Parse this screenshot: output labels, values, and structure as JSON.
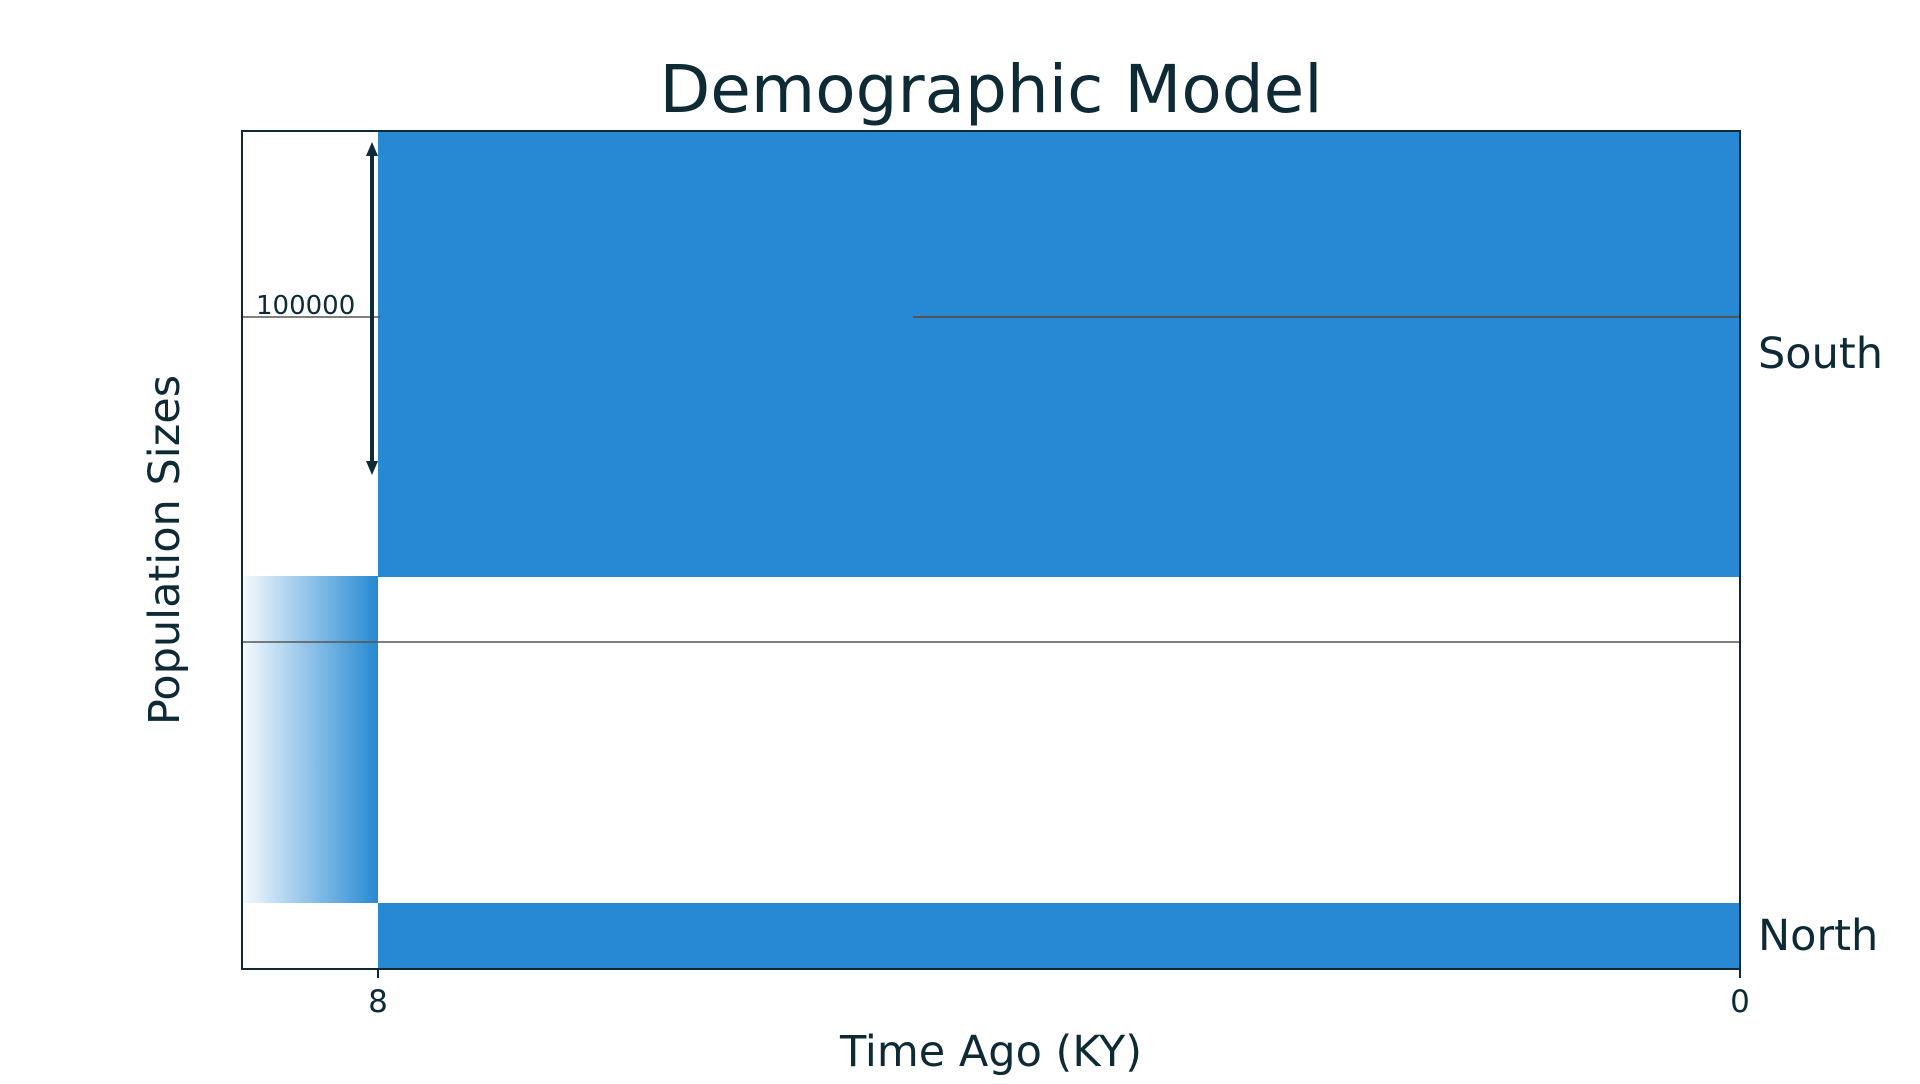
{
  "chart_data": {
    "type": "area",
    "title": "Demographic Model",
    "xlabel": "Time Ago (KY)",
    "ylabel": "Population Sizes",
    "x_ticks": [
      "8",
      "0"
    ],
    "xlim": [
      8,
      0
    ],
    "scale_bar": {
      "label": "100000",
      "value": 100000
    },
    "populations": [
      {
        "name": "South",
        "start_time": 8,
        "end_time": 0,
        "size": 178000
      },
      {
        "name": "North",
        "start_time": 8,
        "end_time": 0,
        "size": 26000
      }
    ],
    "ancestral_population": {
      "start_time_from": 9,
      "start_time_to": 8,
      "size": 130000
    },
    "grid": false
  },
  "colors": {
    "population_fill": "#2789d3",
    "axis": "#0d2a35",
    "text": "#0d2a35",
    "separator": "#555555"
  }
}
